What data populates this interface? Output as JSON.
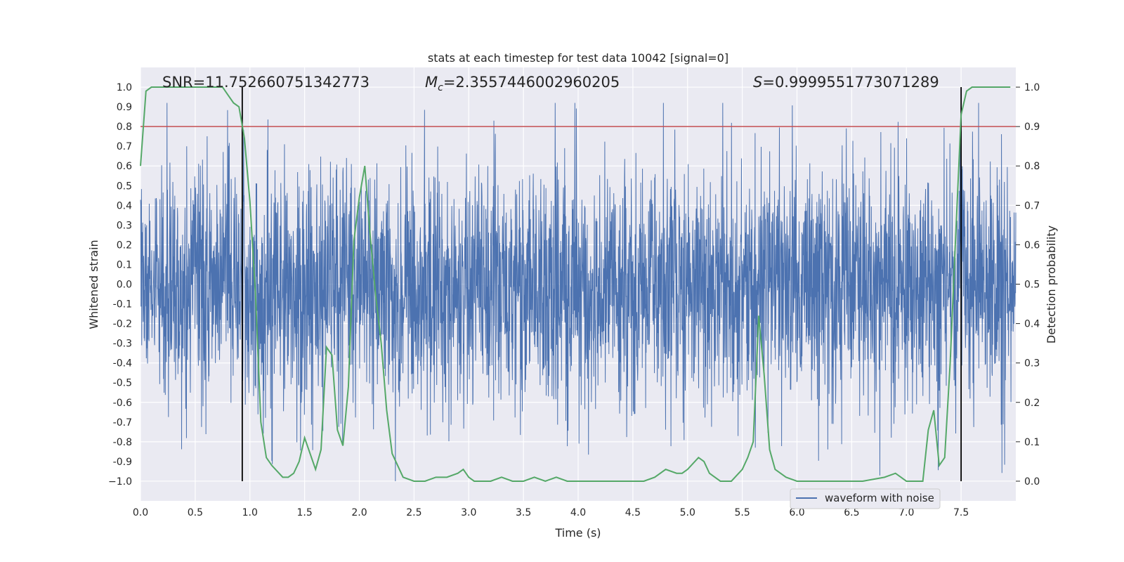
{
  "chart_data": {
    "type": "line",
    "title": "stats at each timestep for test data 10042 [signal=0]",
    "xlabel": "Time (s)",
    "ylabel_left": "Whitened strain",
    "ylabel_right": "Detection probability",
    "xlim": [
      0.0,
      8.0
    ],
    "ylim_left": [
      -1.1,
      1.1
    ],
    "ylim_right": [
      -0.05,
      1.05
    ],
    "x_ticks": [
      "0.0",
      "0.5",
      "1.0",
      "1.5",
      "2.0",
      "2.5",
      "3.0",
      "3.5",
      "4.0",
      "4.5",
      "5.0",
      "5.5",
      "6.0",
      "6.5",
      "7.0",
      "7.5"
    ],
    "y_ticks_left": [
      "1.0",
      "0.9",
      "0.8",
      "0.7",
      "0.6",
      "0.5",
      "0.4",
      "0.3",
      "0.2",
      "0.1",
      "0.0",
      "-0.1",
      "-0.2",
      "-0.3",
      "-0.4",
      "-0.5",
      "-0.6",
      "-0.7",
      "-0.8",
      "-0.9",
      "−1.0"
    ],
    "y_ticks_right": [
      "1.0",
      "0.9",
      "0.8",
      "0.7",
      "0.6",
      "0.5",
      "0.4",
      "0.3",
      "0.2",
      "0.1",
      "0.0"
    ],
    "grid": true,
    "legend": {
      "placement": "lower-right",
      "entries": [
        "waveform with noise"
      ]
    },
    "annotations": {
      "snr": "SNR=11.752660751342773",
      "mc_symbol": "M",
      "mc_subscript": "c",
      "mc_value": "=2.3557446002960205",
      "s_symbol": "S",
      "s_value": "=0.9999551773071289"
    },
    "threshold_line": {
      "y": 0.9,
      "axis": "right",
      "color": "#c44e52"
    },
    "vertical_lines": [
      0.93,
      7.5
    ],
    "waveform": {
      "name": "waveform with noise",
      "color": "#4c72b0",
      "x_range": [
        0.0,
        8.0
      ],
      "typical_amplitude": 0.3,
      "max_excursion": 0.92,
      "min_excursion": -1.0
    },
    "detection_probability": {
      "color": "#55a868",
      "x": [
        0.0,
        0.05,
        0.1,
        0.2,
        0.3,
        0.4,
        0.5,
        0.6,
        0.7,
        0.75,
        0.8,
        0.85,
        0.9,
        0.95,
        1.0,
        1.05,
        1.1,
        1.15,
        1.2,
        1.3,
        1.35,
        1.4,
        1.45,
        1.5,
        1.6,
        1.65,
        1.7,
        1.75,
        1.8,
        1.85,
        1.9,
        1.95,
        2.0,
        2.05,
        2.1,
        2.15,
        2.2,
        2.25,
        2.3,
        2.4,
        2.5,
        2.6,
        2.7,
        2.8,
        2.9,
        2.95,
        3.0,
        3.05,
        3.1,
        3.2,
        3.3,
        3.4,
        3.5,
        3.6,
        3.7,
        3.8,
        3.9,
        4.0,
        4.2,
        4.4,
        4.5,
        4.6,
        4.7,
        4.8,
        4.9,
        4.95,
        5.0,
        5.1,
        5.15,
        5.2,
        5.3,
        5.4,
        5.5,
        5.55,
        5.6,
        5.65,
        5.7,
        5.75,
        5.8,
        5.9,
        6.0,
        6.2,
        6.4,
        6.6,
        6.8,
        6.9,
        6.95,
        7.0,
        7.1,
        7.15,
        7.2,
        7.25,
        7.3,
        7.35,
        7.4,
        7.45,
        7.5,
        7.55,
        7.6,
        7.7,
        7.8,
        7.95
      ],
      "y": [
        0.8,
        0.99,
        1.0,
        1.0,
        1.0,
        1.0,
        1.0,
        1.0,
        1.0,
        1.0,
        0.98,
        0.96,
        0.95,
        0.87,
        0.71,
        0.48,
        0.15,
        0.06,
        0.04,
        0.01,
        0.01,
        0.02,
        0.05,
        0.11,
        0.03,
        0.08,
        0.34,
        0.32,
        0.13,
        0.09,
        0.24,
        0.61,
        0.72,
        0.8,
        0.62,
        0.47,
        0.35,
        0.18,
        0.07,
        0.01,
        0.0,
        0.0,
        0.01,
        0.01,
        0.02,
        0.03,
        0.01,
        0.0,
        0.0,
        0.0,
        0.01,
        0.0,
        0.0,
        0.01,
        0.0,
        0.01,
        0.0,
        0.0,
        0.0,
        0.0,
        0.0,
        0.0,
        0.01,
        0.03,
        0.02,
        0.02,
        0.03,
        0.06,
        0.05,
        0.02,
        0.0,
        0.0,
        0.03,
        0.06,
        0.1,
        0.42,
        0.27,
        0.08,
        0.03,
        0.01,
        0.0,
        0.0,
        0.0,
        0.0,
        0.01,
        0.02,
        0.01,
        0.0,
        0.0,
        0.0,
        0.13,
        0.18,
        0.04,
        0.06,
        0.3,
        0.62,
        0.93,
        0.99,
        1.0,
        1.0,
        1.0,
        1.0
      ]
    }
  }
}
